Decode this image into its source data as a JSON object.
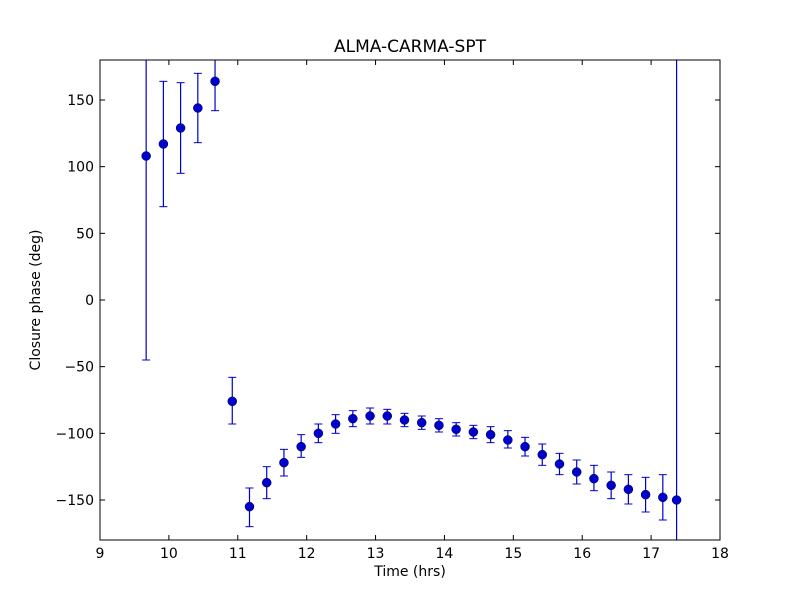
{
  "chart_data": {
    "type": "scatter",
    "title": "ALMA-CARMA-SPT",
    "xlabel": "Time (hrs)",
    "ylabel": "Closure phase (deg)",
    "xlim": [
      9,
      18
    ],
    "ylim": [
      -180,
      180
    ],
    "xticks": [
      9,
      10,
      11,
      12,
      13,
      14,
      15,
      16,
      17,
      18
    ],
    "yticks": [
      -150,
      -100,
      -50,
      0,
      50,
      100,
      150
    ],
    "xtick_labels": [
      "9",
      "10",
      "11",
      "12",
      "13",
      "14",
      "15",
      "16",
      "17",
      "18"
    ],
    "ytick_labels": [
      "−150",
      "−100",
      "−50",
      "0",
      "50",
      "100",
      "150"
    ],
    "grid": false,
    "marker_color": "#0000cc",
    "errorbar_color": "#0000cc",
    "points": [
      {
        "x": 9.67,
        "y": 108,
        "err_low": 153,
        "err_high": 72
      },
      {
        "x": 9.92,
        "y": 117,
        "err_low": 47,
        "err_high": 47
      },
      {
        "x": 10.17,
        "y": 129,
        "err_low": 34,
        "err_high": 34
      },
      {
        "x": 10.42,
        "y": 144,
        "err_low": 26,
        "err_high": 26
      },
      {
        "x": 10.67,
        "y": 164,
        "err_low": 22,
        "err_high": 16
      },
      {
        "x": 10.92,
        "y": -76,
        "err_low": 17,
        "err_high": 18
      },
      {
        "x": 11.17,
        "y": -155,
        "err_low": 15,
        "err_high": 14
      },
      {
        "x": 11.42,
        "y": -137,
        "err_low": 12,
        "err_high": 12
      },
      {
        "x": 11.67,
        "y": -122,
        "err_low": 10,
        "err_high": 10
      },
      {
        "x": 11.92,
        "y": -110,
        "err_low": 8,
        "err_high": 9
      },
      {
        "x": 12.17,
        "y": -100,
        "err_low": 7,
        "err_high": 7
      },
      {
        "x": 12.42,
        "y": -93,
        "err_low": 7,
        "err_high": 7
      },
      {
        "x": 12.67,
        "y": -89,
        "err_low": 6,
        "err_high": 6
      },
      {
        "x": 12.92,
        "y": -87,
        "err_low": 6,
        "err_high": 6
      },
      {
        "x": 13.17,
        "y": -87,
        "err_low": 6,
        "err_high": 5
      },
      {
        "x": 13.42,
        "y": -90,
        "err_low": 5,
        "err_high": 5
      },
      {
        "x": 13.67,
        "y": -92,
        "err_low": 5,
        "err_high": 5
      },
      {
        "x": 13.92,
        "y": -94,
        "err_low": 5,
        "err_high": 5
      },
      {
        "x": 14.17,
        "y": -97,
        "err_low": 5,
        "err_high": 5
      },
      {
        "x": 14.42,
        "y": -99,
        "err_low": 5,
        "err_high": 5
      },
      {
        "x": 14.67,
        "y": -101,
        "err_low": 6,
        "err_high": 6
      },
      {
        "x": 14.92,
        "y": -105,
        "err_low": 6,
        "err_high": 7
      },
      {
        "x": 15.17,
        "y": -110,
        "err_low": 7,
        "err_high": 7
      },
      {
        "x": 15.42,
        "y": -116,
        "err_low": 8,
        "err_high": 8
      },
      {
        "x": 15.67,
        "y": -123,
        "err_low": 8,
        "err_high": 8
      },
      {
        "x": 15.92,
        "y": -129,
        "err_low": 9,
        "err_high": 9
      },
      {
        "x": 16.17,
        "y": -134,
        "err_low": 9,
        "err_high": 10
      },
      {
        "x": 16.42,
        "y": -139,
        "err_low": 10,
        "err_high": 10
      },
      {
        "x": 16.67,
        "y": -142,
        "err_low": 11,
        "err_high": 11
      },
      {
        "x": 16.92,
        "y": -146,
        "err_low": 13,
        "err_high": 13
      },
      {
        "x": 17.17,
        "y": -148,
        "err_low": 17,
        "err_high": 17
      },
      {
        "x": 17.37,
        "y": -150,
        "err_low": 360,
        "err_high": 360
      }
    ]
  }
}
